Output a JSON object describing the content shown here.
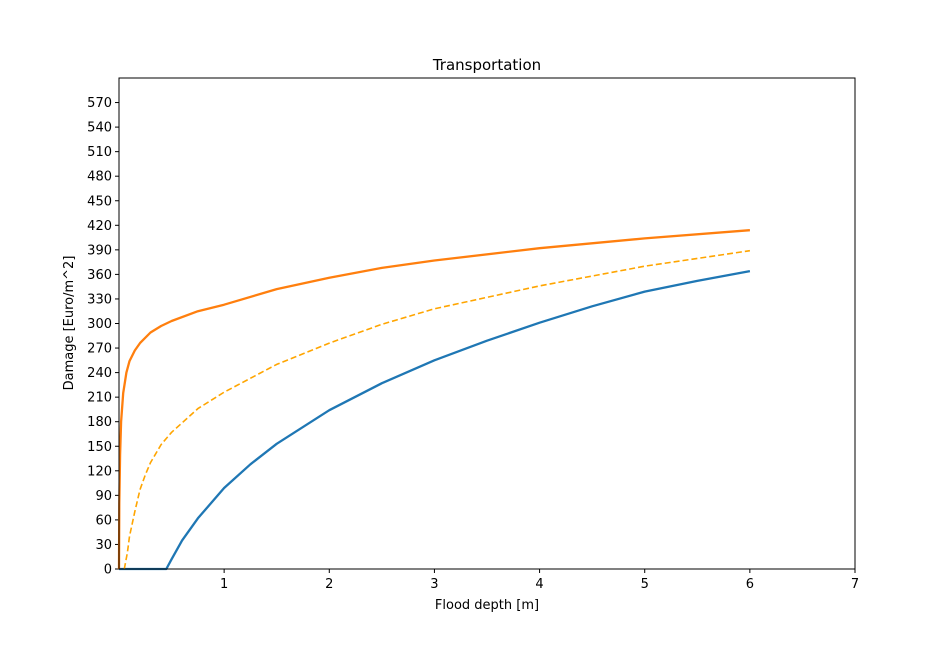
{
  "chart_data": {
    "type": "line",
    "title": "Transportation",
    "xlabel": "Flood depth [m]",
    "ylabel": "Damage [Euro/m^2]",
    "xlim": [
      0,
      7
    ],
    "ylim": [
      0,
      600
    ],
    "xticks": [
      1,
      2,
      3,
      4,
      5,
      6,
      7
    ],
    "yticks": [
      0,
      30,
      60,
      90,
      120,
      150,
      180,
      210,
      240,
      270,
      300,
      330,
      360,
      390,
      420,
      450,
      480,
      510,
      540,
      570
    ],
    "grid": false,
    "legend": null,
    "series": [
      {
        "color": "#1f77b4",
        "style": "solid",
        "x": [
          0,
          0.3,
          0.45,
          0.5,
          0.6,
          0.75,
          1.0,
          1.25,
          1.5,
          2.0,
          2.5,
          3.0,
          3.5,
          4.0,
          4.5,
          5.0,
          5.5,
          6.0
        ],
        "y": [
          0,
          0,
          0,
          12,
          35,
          62,
          99,
          128,
          153,
          194,
          227,
          255,
          279,
          301,
          321,
          339,
          352,
          364
        ]
      },
      {
        "color": "#ffa500",
        "style": "dashed",
        "x": [
          0.05,
          0.08,
          0.1,
          0.15,
          0.2,
          0.25,
          0.3,
          0.4,
          0.5,
          0.75,
          1.0,
          1.5,
          2.0,
          2.5,
          3.0,
          4.0,
          5.0,
          6.0
        ],
        "y": [
          0,
          20,
          40,
          70,
          97,
          115,
          130,
          152,
          167,
          196,
          216,
          250,
          276,
          299,
          318,
          346,
          370,
          389
        ]
      },
      {
        "color": "#ff7f0e",
        "style": "solid",
        "x": [
          0.0,
          0.003,
          0.01,
          0.02,
          0.04,
          0.07,
          0.1,
          0.15,
          0.2,
          0.3,
          0.4,
          0.5,
          0.75,
          1.0,
          1.5,
          2.0,
          2.5,
          3.0,
          4.0,
          5.0,
          6.0
        ],
        "y": [
          0,
          80,
          140,
          180,
          215,
          240,
          254,
          267,
          276,
          289,
          297,
          303,
          315,
          323,
          342,
          356,
          368,
          377,
          392,
          404,
          414
        ]
      }
    ]
  }
}
